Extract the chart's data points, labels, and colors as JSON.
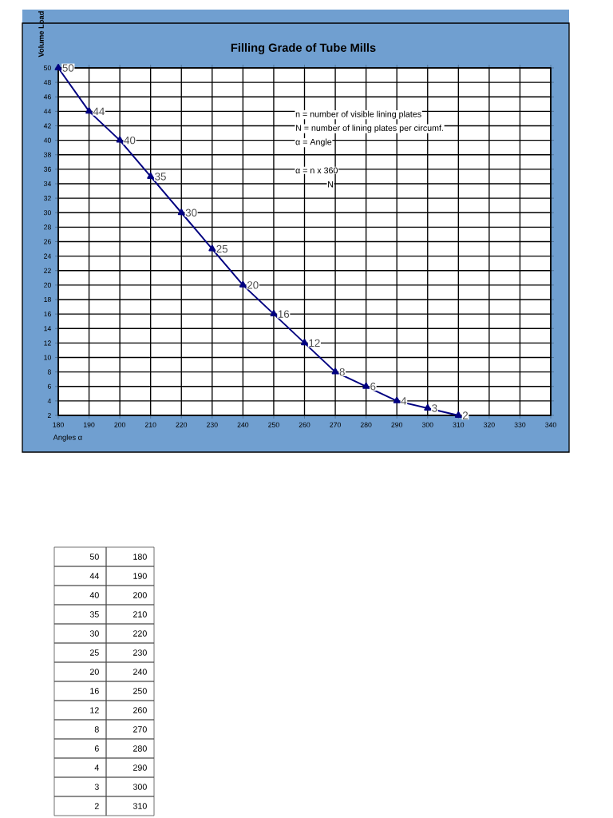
{
  "chart_data": {
    "type": "line",
    "title": "Filling Grade of Tube Mills",
    "xlabel": "Angles α",
    "ylabel": "Volume Load",
    "x": [
      180,
      190,
      200,
      210,
      220,
      230,
      240,
      250,
      260,
      270,
      280,
      290,
      300,
      310
    ],
    "values": [
      50,
      44,
      40,
      35,
      30,
      25,
      20,
      16,
      12,
      8,
      6,
      4,
      3,
      2
    ],
    "color": "#000080",
    "marker": "triangle",
    "line_style": "solid",
    "data_labels": true,
    "grid": true,
    "legend": false,
    "xlim": [
      180,
      340
    ],
    "ylim": [
      2,
      50
    ],
    "xticks": [
      180,
      190,
      200,
      210,
      220,
      230,
      240,
      250,
      260,
      270,
      280,
      290,
      300,
      310,
      320,
      330,
      340
    ],
    "yticks": [
      2,
      4,
      6,
      8,
      10,
      12,
      14,
      16,
      18,
      20,
      22,
      24,
      26,
      28,
      30,
      32,
      34,
      36,
      38,
      40,
      42,
      44,
      46,
      48,
      50
    ],
    "annotations": [
      "n = number of visible lining plates",
      "N = number of lining plates per circumf.",
      "α = Angle",
      "α = n x 360",
      "N",
      "50",
      "180",
      "44",
      "190",
      "40",
      "200",
      "35",
      "210",
      "30",
      "220",
      "25",
      "230",
      "20",
      "240",
      "16",
      "250",
      "12",
      "260",
      "8",
      "270",
      "6",
      "280",
      "4",
      "290",
      "3",
      "300",
      "2",
      "310"
    ]
  }
}
